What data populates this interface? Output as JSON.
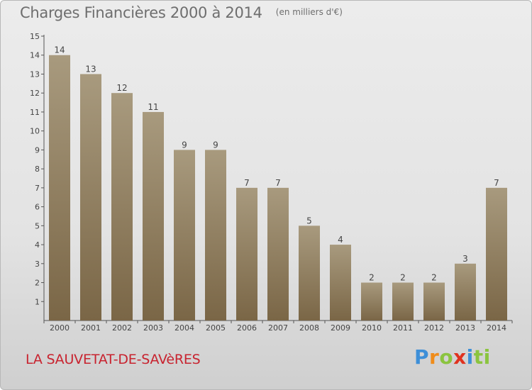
{
  "title": "Charges Financières 2000 à 2014",
  "subtitle": "(en milliers d'€)",
  "place": "LA SAUVETAT-DE-SAVèRES",
  "logo": "Proxiti",
  "colors": {
    "bar_top": "#a89a7e",
    "bar_bottom": "#7a6646",
    "title": "#6e6e6e",
    "place": "#c8232f"
  },
  "chart_data": {
    "type": "bar",
    "title": "Charges Financières 2000 à 2014",
    "subtitle": "(en milliers d'€)",
    "categories": [
      "2000",
      "2001",
      "2002",
      "2003",
      "2004",
      "2005",
      "2006",
      "2007",
      "2008",
      "2009",
      "2010",
      "2011",
      "2012",
      "2013",
      "2014"
    ],
    "values": [
      14,
      13,
      12,
      11,
      9,
      9,
      7,
      7,
      5,
      4,
      2,
      2,
      2,
      3,
      7
    ],
    "ylim": [
      1,
      15
    ],
    "yticks": [
      1,
      2,
      3,
      4,
      5,
      6,
      7,
      8,
      9,
      10,
      11,
      12,
      13,
      14,
      15
    ],
    "grid": false,
    "xlabel": "",
    "ylabel": ""
  }
}
